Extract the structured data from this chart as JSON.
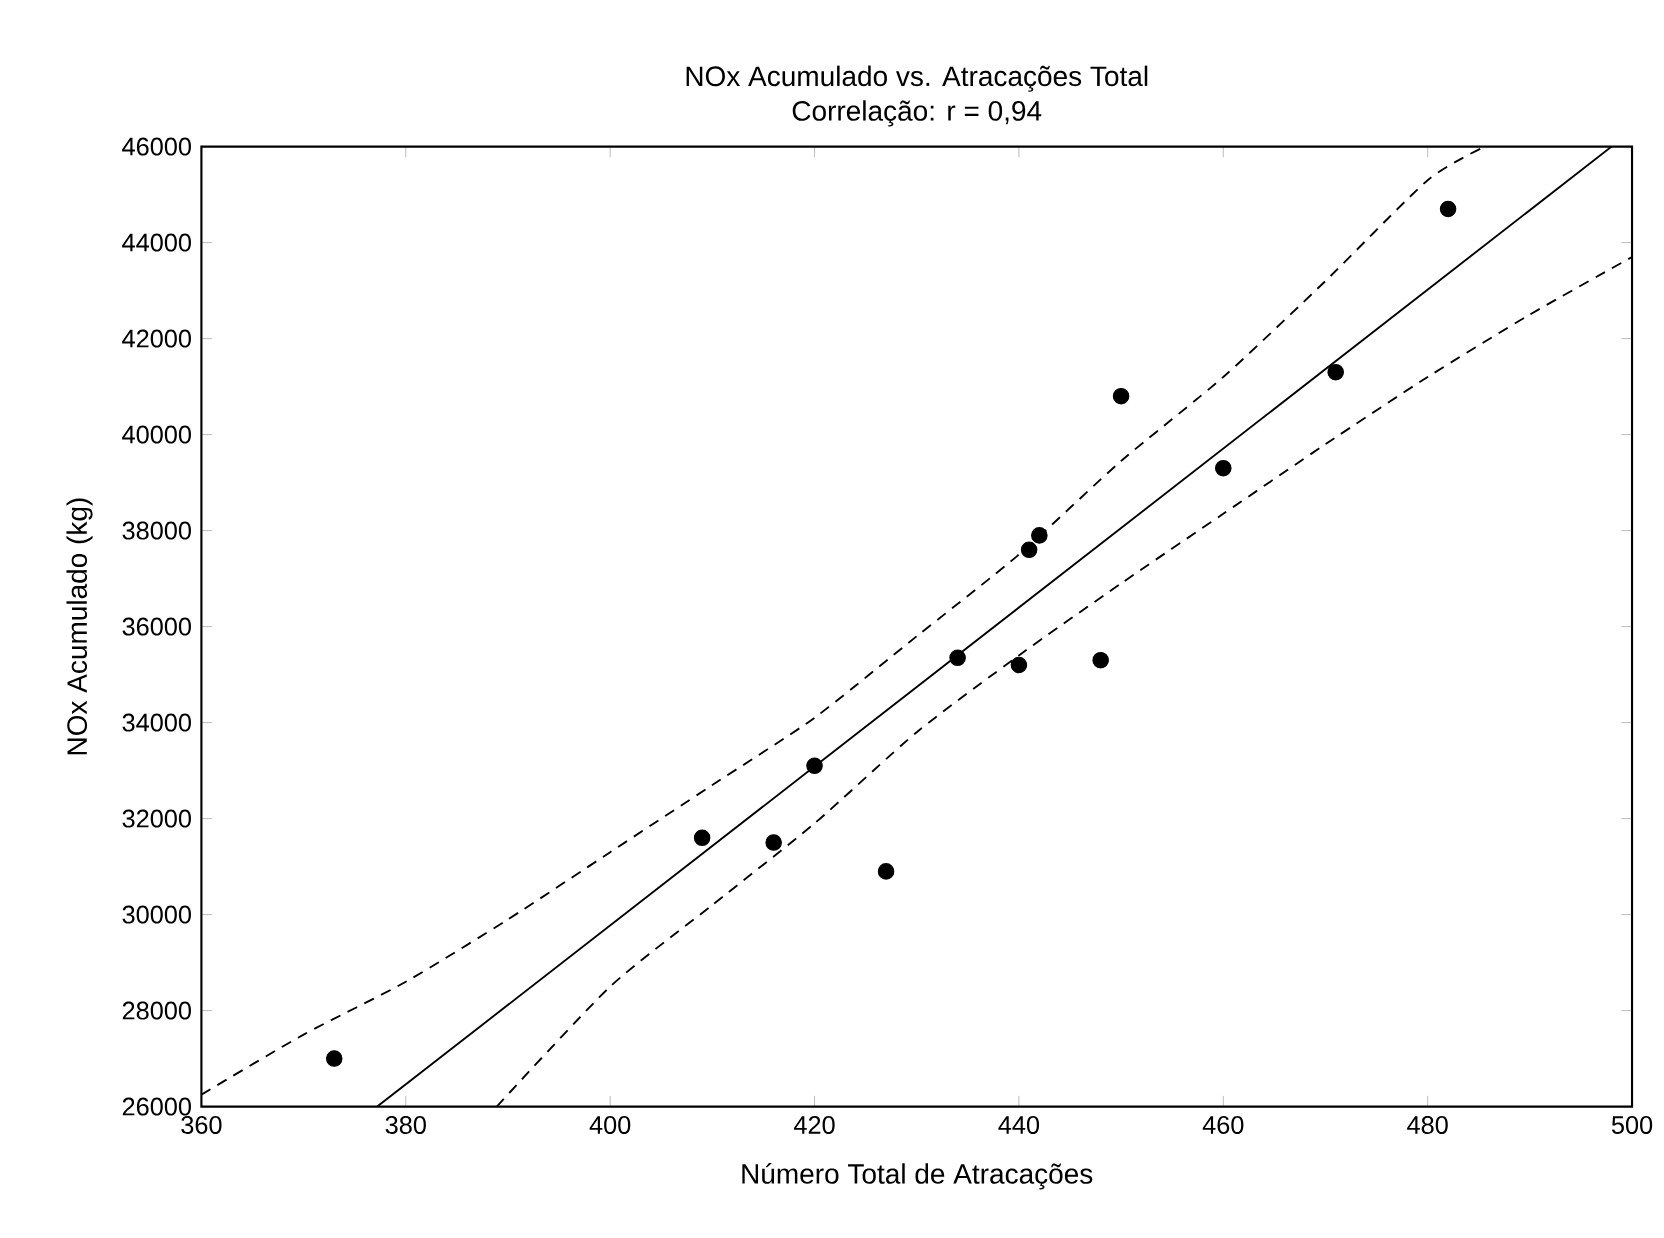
{
  "chart_data": {
    "type": "scatter",
    "title": "NOx Acumulado vs. Atracações Total",
    "subtitle": "Correlação: r = 0,94",
    "xlabel": "Número Total de Atracações",
    "ylabel": "NOx Acumulado (kg)",
    "xlim": [
      360,
      500
    ],
    "xticks": [
      360,
      380,
      400,
      420,
      440,
      460,
      480,
      500
    ],
    "ylim": [
      26000,
      46000
    ],
    "yticks": [
      26000,
      28000,
      30000,
      32000,
      34000,
      36000,
      38000,
      40000,
      42000,
      44000,
      46000
    ],
    "grid": false,
    "series": [
      {
        "marker": "circle",
        "color": "#000000",
        "x": [
          373,
          409,
          416,
          420,
          427,
          434,
          440,
          441,
          442,
          448,
          450,
          460,
          471,
          482
        ],
        "values": [
          27000,
          31600,
          31500,
          33100,
          30900,
          35350,
          35200,
          37600,
          37900,
          35300,
          40800,
          39300,
          41300,
          44700
        ]
      },
      {
        "type": "line",
        "line_style": "solid",
        "color": "#000000",
        "x": [
          377.2,
          498
        ],
        "values": [
          26000,
          46000
        ]
      },
      {
        "type": "line",
        "line_style": "dashed",
        "color": "#000000",
        "x": [
          360,
          370,
          380,
          390,
          400,
          410,
          420,
          430,
          440,
          450,
          460,
          470,
          480,
          485.6
        ],
        "values": [
          26250,
          27500,
          28600,
          29900,
          31300,
          32700,
          34100,
          35800,
          37500,
          39450,
          41200,
          43200,
          45300,
          46000
        ]
      },
      {
        "type": "line",
        "line_style": "dashed",
        "color": "#000000",
        "x": [
          388.9,
          400,
          410,
          420,
          430,
          440,
          450,
          460,
          470,
          480,
          490,
          500
        ],
        "values": [
          26000,
          28500,
          30200,
          31900,
          33800,
          35400,
          36900,
          38350,
          39800,
          41200,
          42500,
          43700
        ]
      }
    ]
  }
}
